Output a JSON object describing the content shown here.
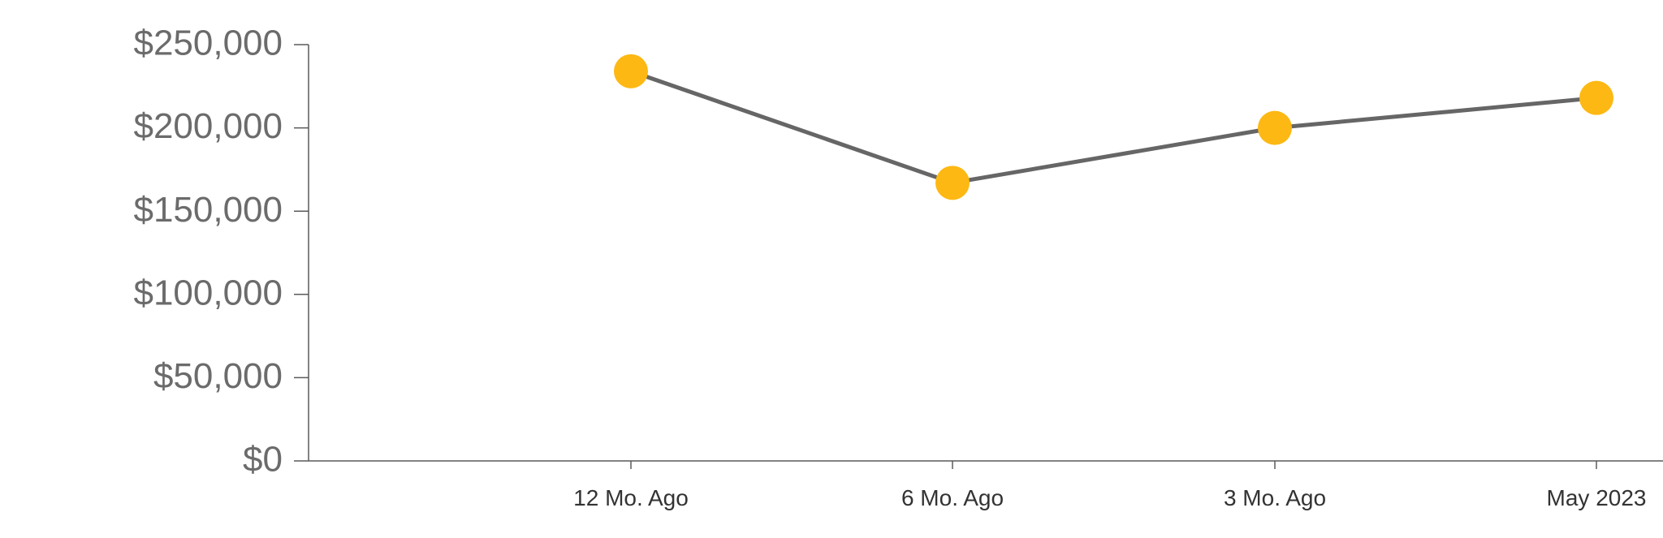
{
  "colors": {
    "background": "#ffffff",
    "axis": "#5a5a5a",
    "tick_label_y": "#6b6b6b",
    "tick_label_x": "#333333",
    "line": "#666666",
    "marker": "#FDB813"
  },
  "chart_data": {
    "type": "line",
    "title": "",
    "xlabel": "",
    "ylabel": "",
    "categories": [
      "12 Mo. Ago",
      "6 Mo. Ago",
      "3 Mo. Ago",
      "May 2023"
    ],
    "series": [
      {
        "values": [
          234000,
          167000,
          200000,
          218000
        ]
      }
    ],
    "ylim": [
      0,
      250000
    ],
    "y_ticks": [
      0,
      50000,
      100000,
      150000,
      200000,
      250000
    ],
    "y_tick_labels": [
      "$0",
      "$50,000",
      "$100,000",
      "$150,000",
      "$200,000",
      "$250,000"
    ],
    "grid": false,
    "legend": "none"
  }
}
